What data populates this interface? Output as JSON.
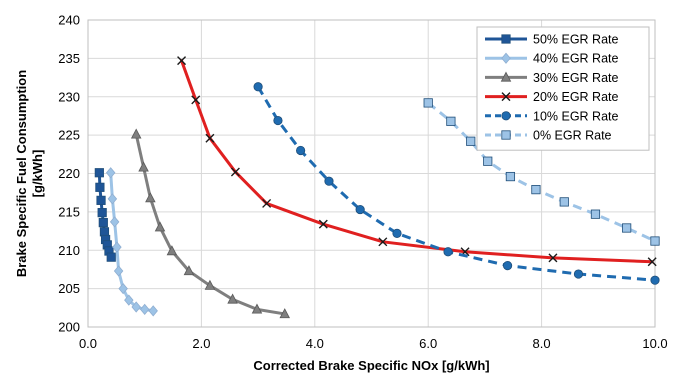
{
  "chart_data": {
    "type": "line",
    "xlabel": "Corrected Brake Specific NOx [g/kWh]",
    "ylabel_line1": "Brake Specific Fuel Consumption",
    "ylabel_line2": "[g/kWh]",
    "xlim": [
      0,
      10
    ],
    "ylim": [
      200,
      240
    ],
    "x_ticks": [
      "0.0",
      "2.0",
      "4.0",
      "6.0",
      "8.0",
      "10.0"
    ],
    "y_ticks": [
      "200",
      "205",
      "210",
      "215",
      "220",
      "225",
      "230",
      "235",
      "240"
    ],
    "grid": true,
    "legend_position": "top-right",
    "series": [
      {
        "name": "50% EGR Rate",
        "color": "#1F5597",
        "marker": "square",
        "dashed": false,
        "points": [
          [
            0.2,
            220.1
          ],
          [
            0.21,
            218.2
          ],
          [
            0.23,
            216.5
          ],
          [
            0.25,
            214.9
          ],
          [
            0.27,
            213.6
          ],
          [
            0.29,
            212.4
          ],
          [
            0.31,
            211.4
          ],
          [
            0.34,
            210.7
          ],
          [
            0.37,
            209.9
          ],
          [
            0.41,
            209.1
          ]
        ]
      },
      {
        "name": "40% EGR Rate",
        "color": "#9DC3E6",
        "marker": "diamond",
        "dashed": false,
        "points": [
          [
            0.4,
            220.1
          ],
          [
            0.43,
            216.7
          ],
          [
            0.47,
            213.7
          ],
          [
            0.51,
            210.4
          ],
          [
            0.54,
            207.3
          ],
          [
            0.62,
            205.0
          ],
          [
            0.72,
            203.5
          ],
          [
            0.85,
            202.6
          ],
          [
            1.0,
            202.3
          ],
          [
            1.15,
            202.1
          ]
        ]
      },
      {
        "name": "30% EGR Rate",
        "color": "#7F7F7F",
        "marker": "triangle",
        "dashed": false,
        "points": [
          [
            0.85,
            225.1
          ],
          [
            0.98,
            220.8
          ],
          [
            1.1,
            216.8
          ],
          [
            1.27,
            213.0
          ],
          [
            1.48,
            209.9
          ],
          [
            1.78,
            207.3
          ],
          [
            2.15,
            205.4
          ],
          [
            2.55,
            203.6
          ],
          [
            2.98,
            202.3
          ],
          [
            3.47,
            201.7
          ]
        ]
      },
      {
        "name": "20% EGR Rate",
        "color": "#E02020",
        "marker": "x",
        "dashed": false,
        "points": [
          [
            1.65,
            234.7
          ],
          [
            1.9,
            229.6
          ],
          [
            2.15,
            224.6
          ],
          [
            2.6,
            220.2
          ],
          [
            3.15,
            216.1
          ],
          [
            4.15,
            213.4
          ],
          [
            5.2,
            211.1
          ],
          [
            6.65,
            209.8
          ],
          [
            8.2,
            209.0
          ],
          [
            9.95,
            208.5
          ]
        ]
      },
      {
        "name": "10% EGR Rate",
        "color": "#1F6BB0",
        "marker": "circle",
        "dashed": true,
        "points": [
          [
            3.0,
            231.3
          ],
          [
            3.35,
            226.9
          ],
          [
            3.75,
            223.0
          ],
          [
            4.25,
            219.0
          ],
          [
            4.8,
            215.3
          ],
          [
            5.45,
            212.2
          ],
          [
            6.35,
            209.8
          ],
          [
            7.4,
            208.0
          ],
          [
            8.65,
            206.9
          ],
          [
            10.0,
            206.1
          ]
        ]
      },
      {
        "name": "0% EGR Rate",
        "color": "#9DC3E6",
        "marker": "square",
        "dashed": true,
        "points": [
          [
            6.0,
            229.2
          ],
          [
            6.4,
            226.8
          ],
          [
            6.75,
            224.2
          ],
          [
            7.05,
            221.6
          ],
          [
            7.45,
            219.6
          ],
          [
            7.9,
            217.9
          ],
          [
            8.4,
            216.3
          ],
          [
            8.95,
            214.7
          ],
          [
            9.5,
            212.9
          ],
          [
            10.0,
            211.2
          ]
        ]
      }
    ]
  }
}
